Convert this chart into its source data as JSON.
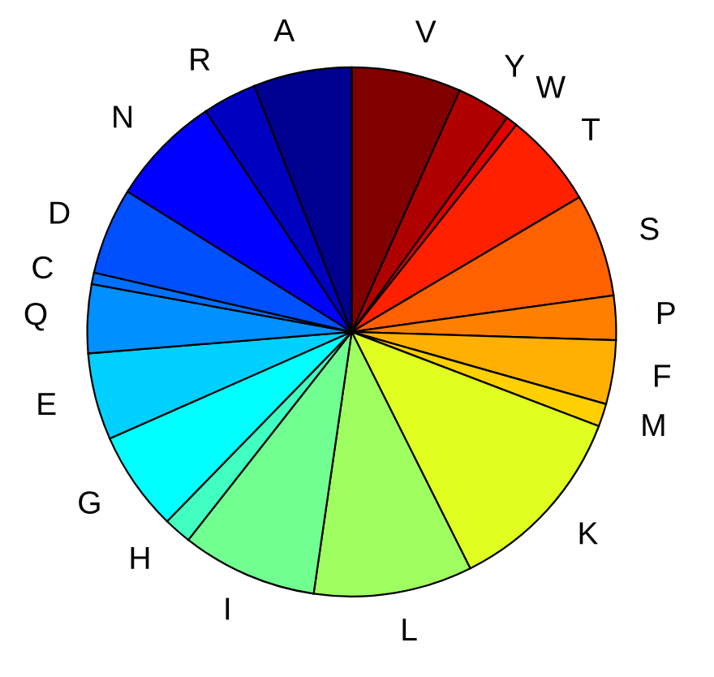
{
  "chart_data": {
    "type": "pie",
    "categories": [
      "V",
      "Y",
      "W",
      "T",
      "S",
      "P",
      "F",
      "M",
      "K",
      "L",
      "I",
      "H",
      "G",
      "E",
      "Q",
      "C",
      "D",
      "N",
      "R",
      "A"
    ],
    "values": [
      6.7,
      3.3,
      0.7,
      5.8,
      6.3,
      2.7,
      3.9,
      1.4,
      11.8,
      9.7,
      8.3,
      1.7,
      6.1,
      5.3,
      4.2,
      0.7,
      5.3,
      6.8,
      3.3,
      6.0
    ],
    "colors": [
      "#800000",
      "#b00000",
      "#e00000",
      "#ff2000",
      "#ff6000",
      "#ff8000",
      "#ffb000",
      "#ffd000",
      "#e0ff20",
      "#a0ff60",
      "#70ff90",
      "#40ffc0",
      "#00ffff",
      "#00d0ff",
      "#0090ff",
      "#0070ff",
      "#0050ff",
      "#0000ff",
      "#0000c0",
      "#000090"
    ],
    "legend": false
  }
}
